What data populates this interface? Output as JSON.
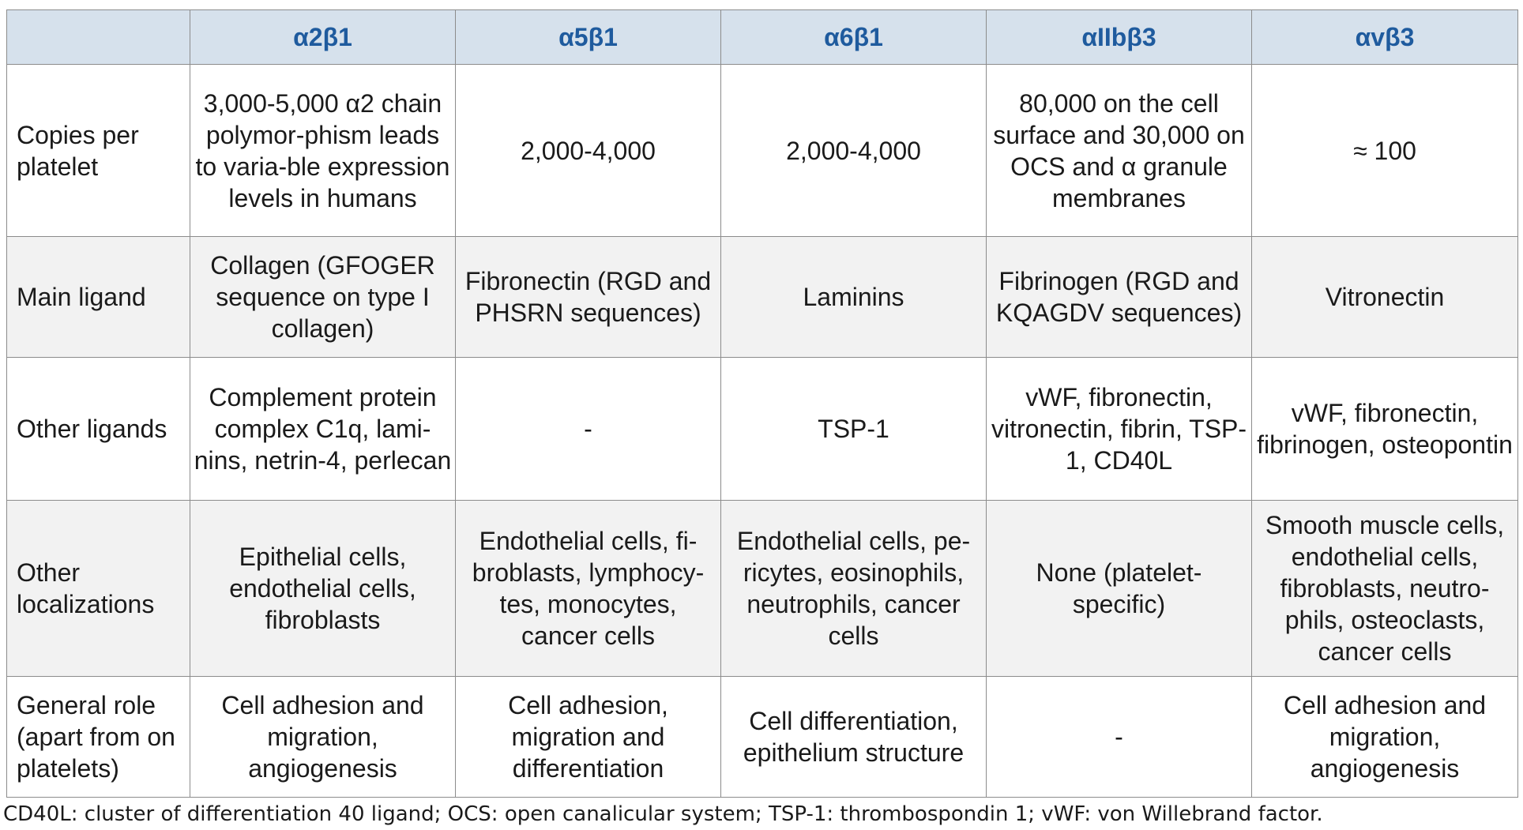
{
  "table": {
    "corner": "",
    "headers": [
      "α2β1",
      "α5β1",
      "α6β1",
      "αIIbβ3",
      "αvβ3"
    ],
    "rows": [
      {
        "label": "Copies per platelet",
        "cells": [
          "3,000-5,000 α2 chain polymor-phism leads to varia-ble expression levels in humans",
          "2,000-4,000",
          "2,000-4,000",
          "80,000 on the cell surface and 30,000 on OCS and α granule membranes",
          "≈ 100"
        ]
      },
      {
        "label": "Main ligand",
        "cells": [
          "Collagen (GFOGER sequence on type I collagen)",
          "Fibronectin (RGD and PHSRN sequences)",
          "Laminins",
          "Fibrinogen (RGD and KQAGDV sequences)",
          "Vitronectin"
        ]
      },
      {
        "label": "Other ligands",
        "cells": [
          "Complement protein complex C1q, lami-nins, netrin-4, perlecan",
          "-",
          "TSP-1",
          "vWF, fibronectin, vitronectin, fibrin, TSP-1, CD40L",
          "vWF, fibronectin, fibrinogen, osteopontin"
        ]
      },
      {
        "label": "Other localizations",
        "cells": [
          "Epithelial cells, endothelial cells, fibroblasts",
          "Endothelial cells, fi-broblasts, lymphocy-tes, monocytes, cancer cells",
          "Endothelial cells, pe-ricytes, eosinophils, neutrophils, cancer cells",
          "None (platelet-specific)",
          "Smooth muscle cells, endothelial cells, fibroblasts, neutro-phils, osteoclasts, cancer cells"
        ]
      },
      {
        "label": "General role (apart from on platelets)",
        "cells": [
          "Cell adhesion and migration, angiogenesis",
          "Cell adhesion, migration and differentiation",
          "Cell differentiation, epithelium structure",
          "-",
          "Cell adhesion and migration, angiogenesis"
        ]
      }
    ]
  },
  "footnote": "CD40L: cluster of differentiation 40 ligand; OCS: open canalicular system; TSP-1: thrombospondin 1; vWF: von Willebrand factor.",
  "colors": {
    "header_bg": "#d6e1ec",
    "header_text": "#1f5b9e",
    "row_alt_bg": "#f2f2f2",
    "border": "#8c8c8c"
  }
}
